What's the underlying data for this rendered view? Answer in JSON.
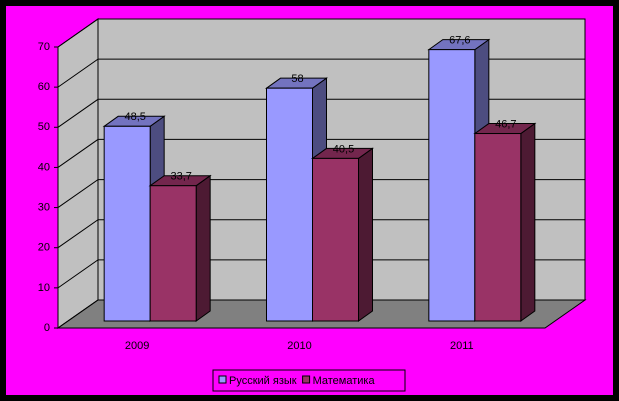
{
  "chart_data": {
    "type": "bar3d",
    "categories": [
      "2009",
      "2010",
      "2011"
    ],
    "series": [
      {
        "name": "Русский язык",
        "color": "#9999FF",
        "values": [
          48.5,
          58,
          67.6
        ],
        "value_labels": [
          "48,5",
          "58",
          "67,6"
        ]
      },
      {
        "name": "Математика",
        "color": "#993366",
        "values": [
          33.7,
          40.5,
          46.7
        ],
        "value_labels": [
          "33,7",
          "40,5",
          "46,7"
        ]
      }
    ],
    "ylim": [
      0,
      70
    ],
    "yticks": [
      0,
      10,
      20,
      30,
      40,
      50,
      60,
      70
    ],
    "grid": true,
    "legend": "bottom"
  }
}
